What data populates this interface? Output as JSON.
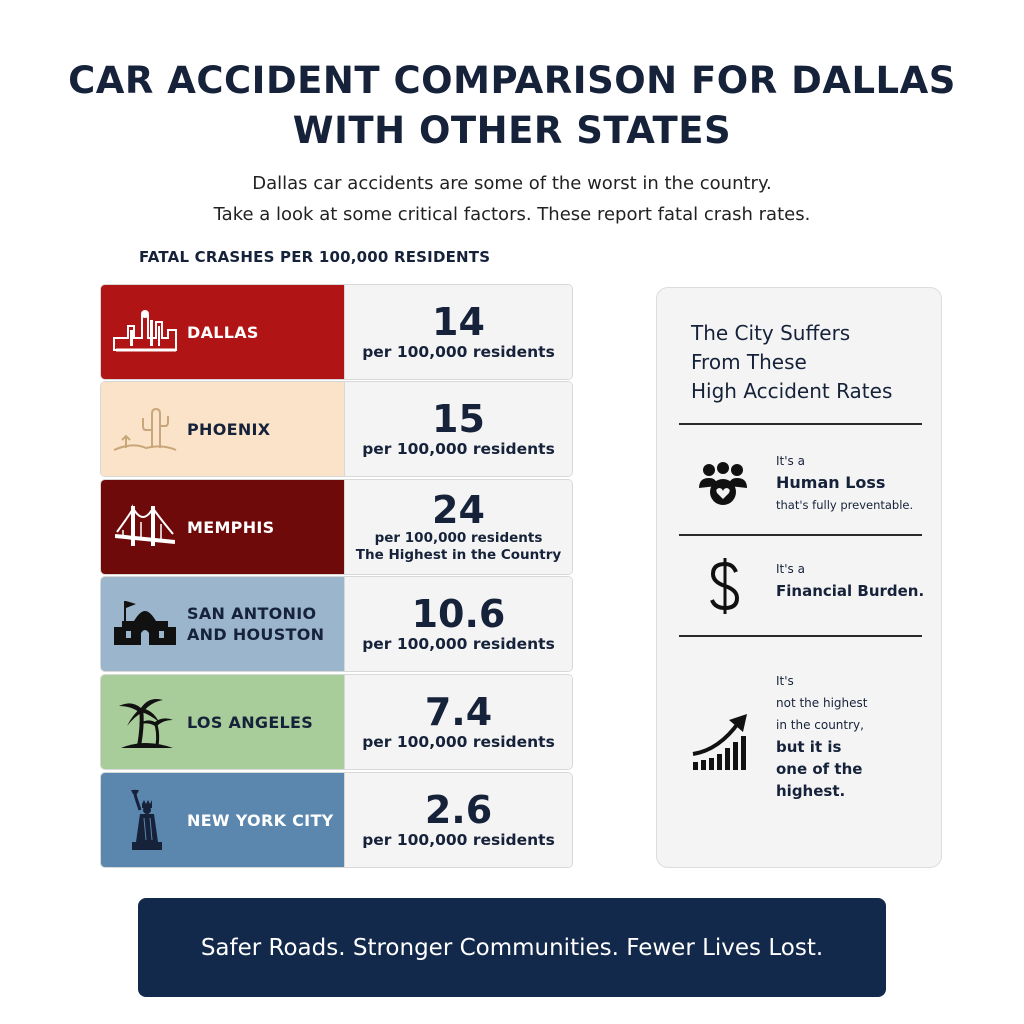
{
  "header": {
    "title_line1": "CAR ACCIDENT COMPARISON FOR DALLAS",
    "title_line2": "WITH OTHER STATES",
    "subtitle_line1": "Dallas car accidents are some of the worst in the country.",
    "subtitle_line2": "Take a look at some critical factors. These report fatal crash rates."
  },
  "section_label": "FATAL CRASHES PER 100,000 RESIDENTS",
  "rows": [
    {
      "city": "DALLAS",
      "value": "14",
      "unit": "per 100,000 residents",
      "icon": "dallas-skyline-icon",
      "bg": "#b01414",
      "text_color": "#ffffff"
    },
    {
      "city": "PHOENIX",
      "value": "15",
      "unit": "per 100,000 residents",
      "icon": "cactus-icon",
      "bg": "#fae3c8",
      "text_color": "#16223a"
    },
    {
      "city": "MEMPHIS",
      "value": "24",
      "unit": "per 100,000 residents",
      "note": "The Highest in the Country",
      "icon": "bridge-icon",
      "bg": "#6e0a0a",
      "text_color": "#ffffff"
    },
    {
      "city_line1": "SAN ANTONIO",
      "city_line2": "AND HOUSTON",
      "value": "10.6",
      "unit": "per 100,000 residents",
      "icon": "alamo-icon",
      "bg": "#9bb5cc",
      "text_color": "#16223a"
    },
    {
      "city": "LOS ANGELES",
      "value": "7.4",
      "unit": "per 100,000 residents",
      "icon": "palm-trees-icon",
      "bg": "#a8cc9a",
      "text_color": "#16223a"
    },
    {
      "city": "NEW YORK CITY",
      "value": "2.6",
      "unit": "per 100,000 residents",
      "icon": "statue-of-liberty-icon",
      "bg": "#5b86ad",
      "text_color": "#ffffff"
    }
  ],
  "panel": {
    "title_line1": "The City Suffers",
    "title_line2": "From These",
    "title_line3": "High Accident Rates",
    "items": [
      {
        "icon": "people-heart-icon",
        "l1": "It's a",
        "l2": "Human Loss",
        "l3": "that's fully preventable."
      },
      {
        "icon": "dollar-icon",
        "l1": "It's a",
        "l2": "Financial Burden."
      },
      {
        "icon": "rising-chart-icon",
        "l1": "It's",
        "l2": "not the highest",
        "l3": "in the country,",
        "l4": "but it is",
        "l5": "one of the",
        "l6": "highest."
      }
    ]
  },
  "banner": "Safer Roads. Stronger Communities. Fewer Lives Lost."
}
